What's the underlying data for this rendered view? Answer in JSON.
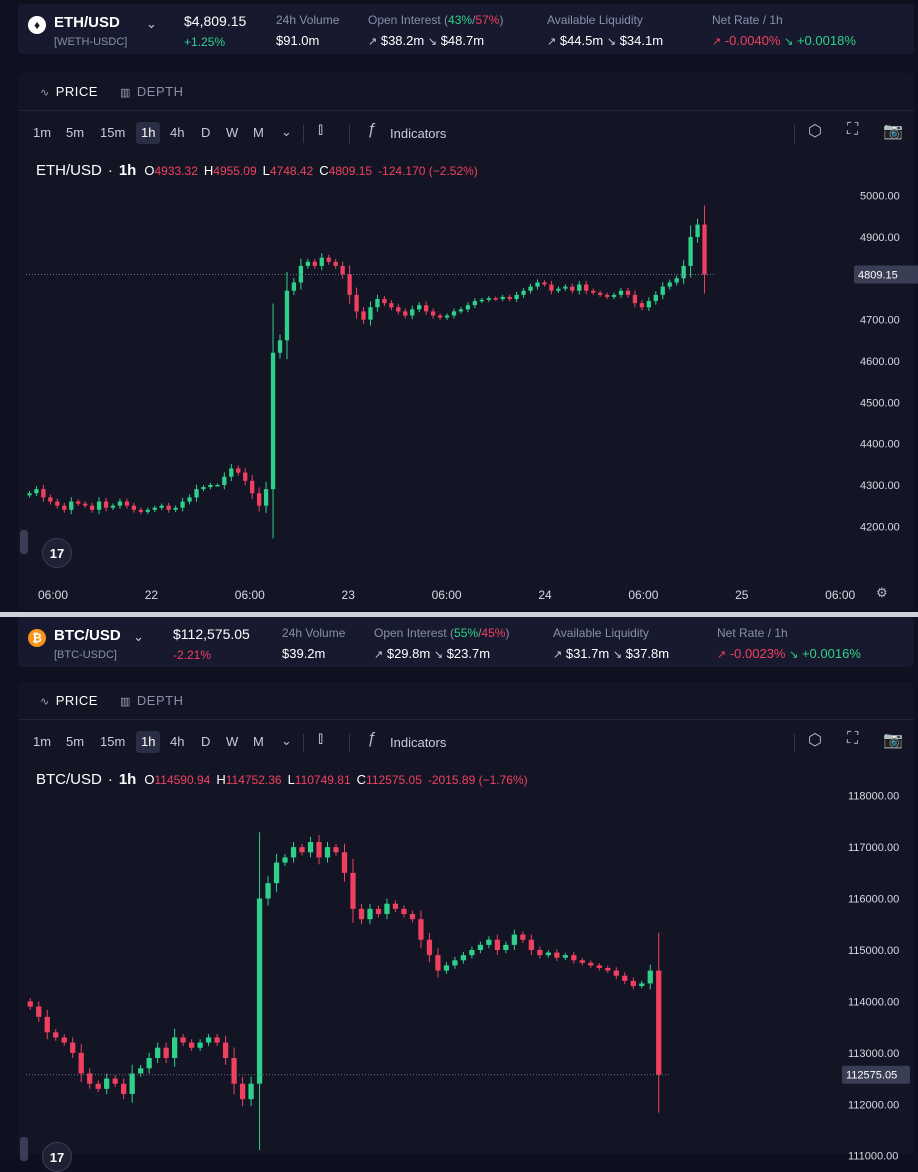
{
  "eth": {
    "market": {
      "icon": "ethereum-icon",
      "pair": "ETH/USD",
      "sub": "[WETH-USDC]",
      "price": "$4,809.15",
      "change": "+1.25%",
      "volume_label": "24h Volume",
      "volume": "$91.0m",
      "oi_label_prefix": "Open Interest (",
      "oi_long_pct": "43%",
      "oi_slash": "/",
      "oi_short_pct": "57%",
      "oi_label_suffix": ")",
      "oi_long": "$38.2m",
      "oi_short": "$48.7m",
      "liq_label": "Available Liquidity",
      "liq_long": "$44.5m",
      "liq_short": "$34.1m",
      "rate_label": "Net Rate / 1h",
      "rate_long": "-0.0040%",
      "rate_short": "+0.0018%"
    },
    "chart": {
      "tab_price": "PRICE",
      "tab_depth": "DEPTH",
      "timeframes": [
        "1m",
        "5m",
        "15m",
        "1h",
        "4h",
        "D",
        "W",
        "M"
      ],
      "active_timeframe": "1h",
      "indicators": "Indicators",
      "legend_symbol": "ETH/USD",
      "legend_sep": "·",
      "legend_interval": "1h",
      "legend_o": "4933.32",
      "legend_h": "4955.09",
      "legend_l": "4748.42",
      "legend_c": "4809.15",
      "legend_change": "-124.170 (−2.52%)",
      "last_price_label": "4809.15"
    }
  },
  "btc": {
    "market": {
      "icon": "bitcoin-icon",
      "pair": "BTC/USD",
      "sub": "[BTC-USDC]",
      "price": "$112,575.05",
      "change": "-2.21%",
      "volume_label": "24h Volume",
      "volume": "$39.2m",
      "oi_label_prefix": "Open Interest (",
      "oi_long_pct": "55%",
      "oi_slash": "/",
      "oi_short_pct": "45%",
      "oi_label_suffix": ")",
      "oi_long": "$29.8m",
      "oi_short": "$23.7m",
      "liq_label": "Available Liquidity",
      "liq_long": "$31.7m",
      "liq_short": "$37.8m",
      "rate_label": "Net Rate / 1h",
      "rate_long": "-0.0023%",
      "rate_short": "+0.0016%"
    },
    "chart": {
      "tab_price": "PRICE",
      "tab_depth": "DEPTH",
      "timeframes": [
        "1m",
        "5m",
        "15m",
        "1h",
        "4h",
        "D",
        "W",
        "M"
      ],
      "active_timeframe": "1h",
      "indicators": "Indicators",
      "legend_symbol": "BTC/USD",
      "legend_sep": "·",
      "legend_interval": "1h",
      "legend_o": "114590.94",
      "legend_h": "114752.36",
      "legend_l": "110749.81",
      "legend_c": "112575.05",
      "legend_change": "-2015.89 (−1.76%)",
      "last_price_label": "112575.05"
    }
  },
  "colors": {
    "up": "#2fd08a",
    "down": "#f0405f",
    "eth_icon": "#ffffff",
    "btc_icon": "#f7931a"
  },
  "chart_data": [
    {
      "type": "candlestick",
      "title": "ETH/USD · 1h",
      "ylim": [
        4150,
        5050
      ],
      "yticks": [
        "5000.00",
        "4900.00",
        "4800.00",
        "4700.00",
        "4600.00",
        "4500.00",
        "4400.00",
        "4300.00",
        "4200.00"
      ],
      "xticks": [
        "06:00",
        "22",
        "06:00",
        "23",
        "06:00",
        "24",
        "06:00",
        "25",
        "06:00"
      ],
      "last_price": 4809.15,
      "closes": [
        4280,
        4290,
        4270,
        4260,
        4250,
        4240,
        4260,
        4255,
        4250,
        4240,
        4260,
        4245,
        4250,
        4260,
        4250,
        4240,
        4235,
        4240,
        4245,
        4250,
        4240,
        4245,
        4260,
        4270,
        4290,
        4295,
        4300,
        4300,
        4320,
        4340,
        4330,
        4310,
        4280,
        4250,
        4290,
        4620,
        4650,
        4770,
        4790,
        4830,
        4840,
        4830,
        4850,
        4840,
        4830,
        4810,
        4760,
        4720,
        4700,
        4730,
        4750,
        4740,
        4730,
        4720,
        4710,
        4725,
        4735,
        4720,
        4710,
        4705,
        4710,
        4720,
        4725,
        4735,
        4745,
        4748,
        4752,
        4750,
        4755,
        4750,
        4760,
        4770,
        4780,
        4790,
        4785,
        4770,
        4775,
        4780,
        4770,
        4785,
        4770,
        4765,
        4760,
        4755,
        4760,
        4770,
        4760,
        4740,
        4730,
        4745,
        4760,
        4780,
        4790,
        4800,
        4830,
        4900,
        4930,
        4809.15
      ]
    },
    {
      "type": "candlestick",
      "title": "BTC/USD · 1h",
      "ylim": [
        110800,
        118150
      ],
      "yticks": [
        "118000.00",
        "117000.00",
        "116000.00",
        "115000.00",
        "114000.00",
        "113000.00",
        "112000.00",
        "111000.00"
      ],
      "last_price": 112575.05,
      "closes": [
        113900,
        113700,
        113400,
        113300,
        113200,
        113000,
        112600,
        112400,
        112300,
        112500,
        112400,
        112200,
        112600,
        112700,
        112900,
        113100,
        112900,
        113300,
        113200,
        113100,
        113200,
        113300,
        113200,
        112900,
        112400,
        112100,
        112400,
        116000,
        116300,
        116700,
        116800,
        117000,
        116900,
        117100,
        116800,
        117000,
        116900,
        116500,
        115800,
        115600,
        115800,
        115700,
        115900,
        115800,
        115700,
        115600,
        115200,
        114900,
        114600,
        114700,
        114800,
        114900,
        115000,
        115100,
        115200,
        115000,
        115100,
        115300,
        115200,
        115000,
        114900,
        114950,
        114850,
        114900,
        114800,
        114750,
        114700,
        114650,
        114600,
        114500,
        114400,
        114300,
        114350,
        114600,
        112575.05
      ]
    }
  ]
}
